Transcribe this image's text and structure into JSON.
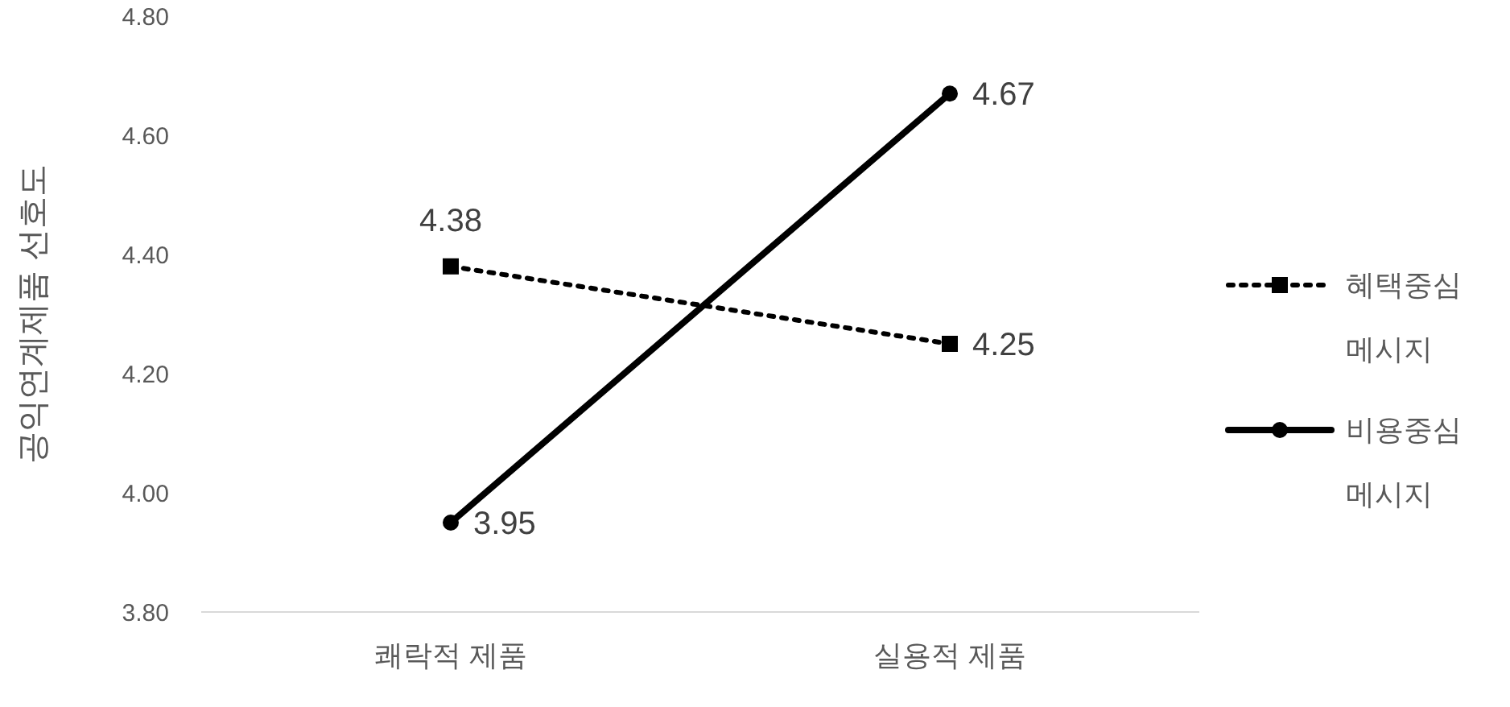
{
  "chart_data": {
    "type": "line",
    "ylabel": "공익연계제품 선호도",
    "categories": [
      "쾌락적 제품",
      "실용적 제품"
    ],
    "series": [
      {
        "name": "혜택중심 메시지",
        "color": "#000000",
        "values": [
          4.38,
          4.25
        ],
        "marker": "square",
        "line_style": "dotted"
      },
      {
        "name": "비용중심 메시지",
        "color": "#000000",
        "values": [
          3.95,
          4.67
        ],
        "marker": "circle",
        "line_style": "solid"
      }
    ],
    "ylim": [
      3.8,
      4.8
    ],
    "yticks": [
      {
        "value": 3.8,
        "label": "3.80"
      },
      {
        "value": 4.0,
        "label": "4.00"
      },
      {
        "value": 4.2,
        "label": "4.20"
      },
      {
        "value": 4.4,
        "label": "4.40"
      },
      {
        "value": 4.6,
        "label": "4.60"
      },
      {
        "value": 4.8,
        "label": "4.80"
      }
    ],
    "grid": false,
    "legend": "right",
    "data_labels": true
  }
}
